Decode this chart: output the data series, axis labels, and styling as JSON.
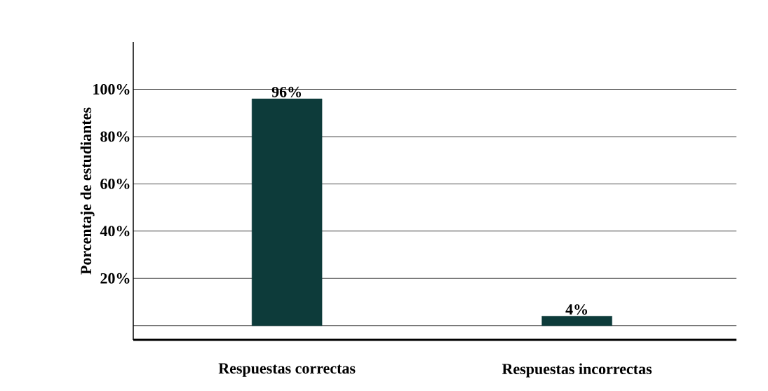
{
  "chart_data": {
    "type": "bar",
    "ylabel": "Porcentaje de estudiantes",
    "categories": [
      "Respuestas correctas",
      "Respuestas incorrectas"
    ],
    "values": [
      96,
      4
    ],
    "value_labels": [
      "96%",
      "4%"
    ],
    "color": "#0d3b3a",
    "ylim": [
      -6,
      120
    ],
    "yticks": [
      {
        "value": 0,
        "label": null
      },
      {
        "value": 20,
        "label": "20%"
      },
      {
        "value": 40,
        "label": "40%"
      },
      {
        "value": 60,
        "label": "60%"
      },
      {
        "value": 80,
        "label": "80%"
      },
      {
        "value": 100,
        "label": "100%"
      }
    ],
    "grid": "y"
  }
}
